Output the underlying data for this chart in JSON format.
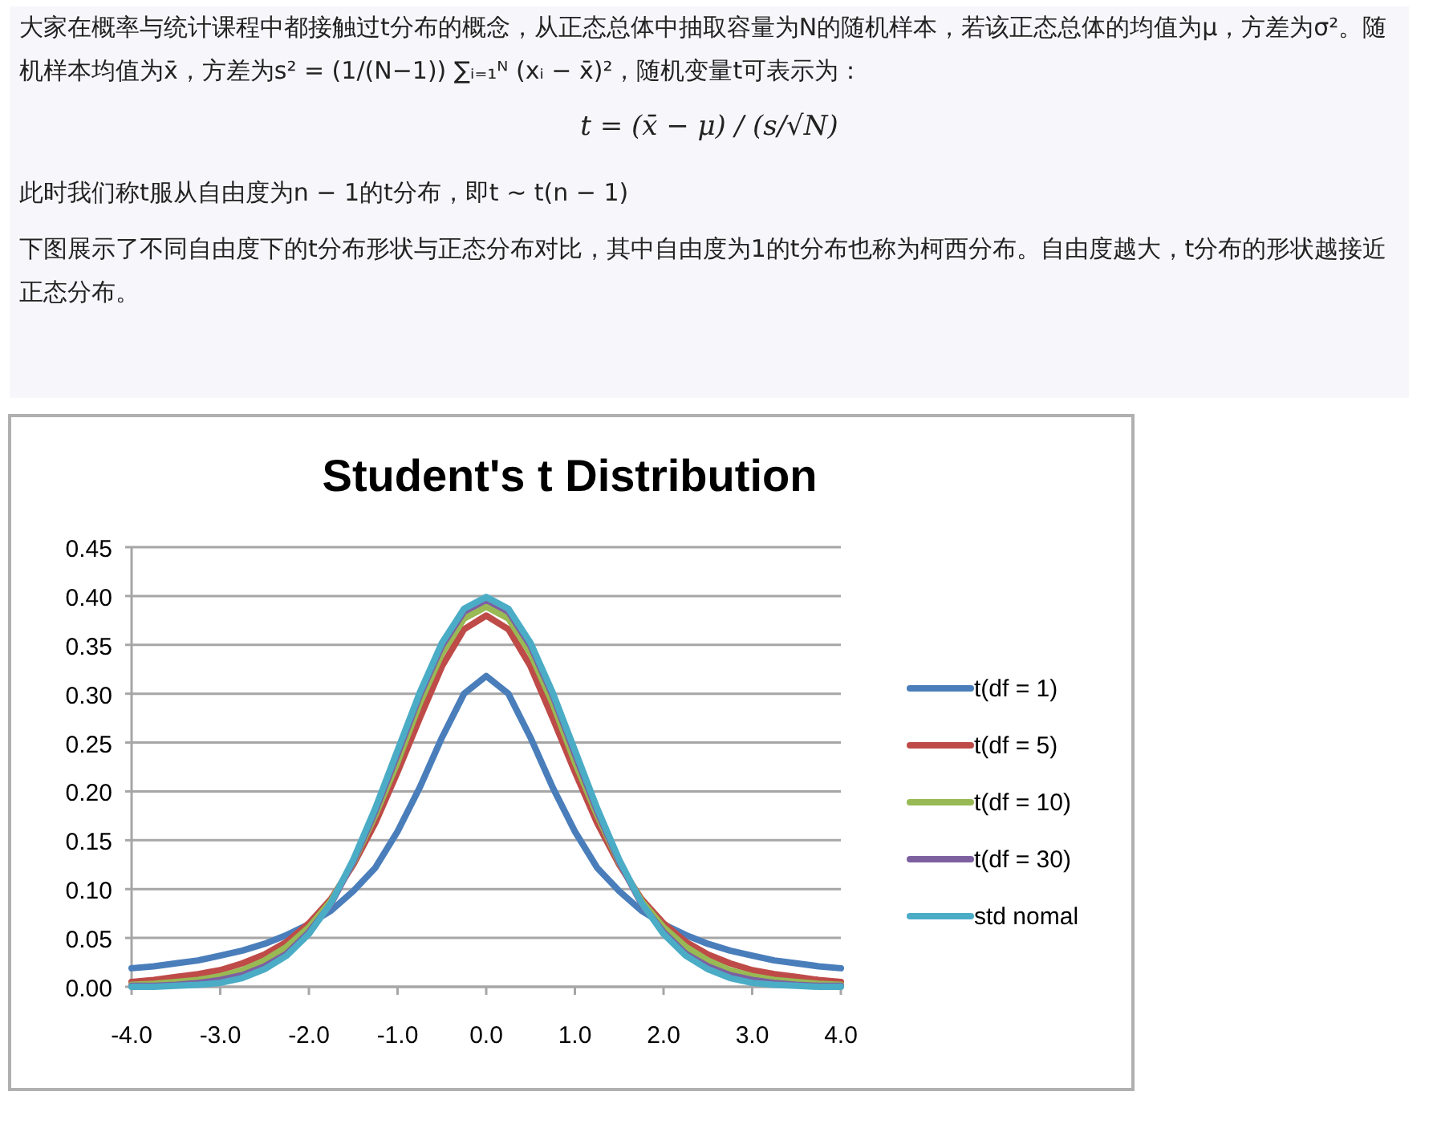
{
  "chart_data": {
    "type": "line",
    "title": "Student's t Distribution",
    "annotations": [
      "大家在概率与统计课程中都接触过t分布的概念，从正态总体中抽取容量为N的随机样本，若该正态总体的均值为μ，方差为σ²。随机样本均值为x̄，方差为s² = (1/(N−1)) ∑ᵢ₌₁ᴺ (xᵢ − x̄)²，随机变量t可表示为：",
      "t = (x̄ − μ) / (s/√N)",
      "此时我们称t服从自由度为n − 1的t分布，即t ∼ t(n − 1)",
      "下图展示了不同自由度下的t分布形状与正态分布对比，其中自由度为1的t分布也称为柯西分布。自由度越大，t分布的形状越接近正态分布。"
    ],
    "x": [
      -4,
      -3.75,
      -3.5,
      -3.25,
      -3,
      -2.75,
      -2.5,
      -2.25,
      -2,
      -1.75,
      -1.5,
      -1.25,
      -1,
      -0.75,
      -0.5,
      -0.25,
      0,
      0.25,
      0.5,
      0.75,
      1,
      1.25,
      1.5,
      1.75,
      2,
      2.25,
      2.5,
      2.75,
      3,
      3.25,
      3.5,
      3.75,
      4
    ],
    "xlim": [
      -4,
      4
    ],
    "ylim": [
      0,
      0.45
    ],
    "xticks": [
      {
        "value": -4,
        "label": "-4.0"
      },
      {
        "value": -3,
        "label": "-3.0"
      },
      {
        "value": -2,
        "label": "-2.0"
      },
      {
        "value": -1,
        "label": "-1.0"
      },
      {
        "value": 0,
        "label": "0.0"
      },
      {
        "value": 1,
        "label": "1.0"
      },
      {
        "value": 2,
        "label": "2.0"
      },
      {
        "value": 3,
        "label": "3.0"
      },
      {
        "value": 4,
        "label": "4.0"
      }
    ],
    "yticks": [
      {
        "value": 0,
        "label": "0.00"
      },
      {
        "value": 0.05,
        "label": "0.05"
      },
      {
        "value": 0.1,
        "label": "0.10"
      },
      {
        "value": 0.15,
        "label": "0.15"
      },
      {
        "value": 0.2,
        "label": "0.20"
      },
      {
        "value": 0.25,
        "label": "0.25"
      },
      {
        "value": 0.3,
        "label": "0.30"
      },
      {
        "value": 0.35,
        "label": "0.35"
      },
      {
        "value": 0.4,
        "label": "0.40"
      },
      {
        "value": 0.45,
        "label": "0.45"
      }
    ],
    "grid": "y",
    "legend": "right",
    "series": [
      {
        "name": "t(df = 1)",
        "color": "#4a7ebb",
        "values": [
          0.019,
          0.021,
          0.024,
          0.027,
          0.032,
          0.037,
          0.044,
          0.053,
          0.064,
          0.078,
          0.098,
          0.122,
          0.159,
          0.204,
          0.255,
          0.3,
          0.318,
          0.3,
          0.255,
          0.204,
          0.159,
          0.122,
          0.098,
          0.078,
          0.064,
          0.053,
          0.044,
          0.037,
          0.032,
          0.027,
          0.024,
          0.021,
          0.019
        ]
      },
      {
        "name": "t(df = 5)",
        "color": "#be4b48",
        "values": [
          0.005,
          0.007,
          0.01,
          0.013,
          0.017,
          0.024,
          0.033,
          0.046,
          0.065,
          0.09,
          0.125,
          0.168,
          0.22,
          0.275,
          0.328,
          0.366,
          0.38,
          0.366,
          0.328,
          0.275,
          0.22,
          0.168,
          0.125,
          0.09,
          0.065,
          0.046,
          0.033,
          0.024,
          0.017,
          0.013,
          0.01,
          0.007,
          0.005
        ]
      },
      {
        "name": "t(df = 10)",
        "color": "#98b954",
        "values": [
          0.002,
          0.003,
          0.005,
          0.007,
          0.011,
          0.017,
          0.027,
          0.041,
          0.061,
          0.088,
          0.127,
          0.176,
          0.23,
          0.29,
          0.341,
          0.377,
          0.389,
          0.377,
          0.341,
          0.29,
          0.23,
          0.176,
          0.127,
          0.088,
          0.061,
          0.041,
          0.027,
          0.017,
          0.011,
          0.007,
          0.005,
          0.003,
          0.002
        ]
      },
      {
        "name": "t(df = 30)",
        "color": "#7d60a0",
        "values": [
          0.001,
          0.001,
          0.002,
          0.004,
          0.007,
          0.012,
          0.021,
          0.034,
          0.056,
          0.085,
          0.128,
          0.18,
          0.238,
          0.298,
          0.349,
          0.384,
          0.396,
          0.384,
          0.349,
          0.298,
          0.238,
          0.18,
          0.128,
          0.085,
          0.056,
          0.034,
          0.021,
          0.012,
          0.007,
          0.004,
          0.002,
          0.001,
          0.001
        ]
      },
      {
        "name": "std nomal",
        "color": "#4bacc6",
        "values": [
          0.0,
          0.0,
          0.001,
          0.002,
          0.004,
          0.009,
          0.018,
          0.032,
          0.054,
          0.086,
          0.13,
          0.183,
          0.242,
          0.301,
          0.352,
          0.387,
          0.399,
          0.387,
          0.352,
          0.301,
          0.242,
          0.183,
          0.13,
          0.086,
          0.054,
          0.032,
          0.018,
          0.009,
          0.004,
          0.002,
          0.001,
          0.0,
          0.0
        ]
      }
    ]
  }
}
